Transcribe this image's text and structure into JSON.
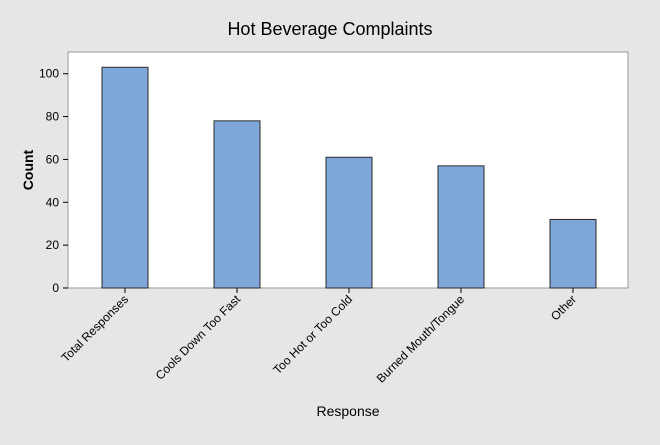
{
  "chart_data": {
    "type": "bar",
    "title": "Hot Beverage Complaints",
    "xlabel": "Response",
    "ylabel": "Count",
    "categories": [
      "Total Responses",
      "Cools Down Too Fast",
      "Too Hot or Too Cold",
      "Burned Mouth/Tongue",
      "Other"
    ],
    "values": [
      103,
      78,
      61,
      57,
      32
    ],
    "ylim": [
      0,
      110
    ],
    "yticks": [
      0,
      20,
      40,
      60,
      80,
      100
    ],
    "grid": false,
    "legend": "none",
    "colors": {
      "bar_fill": "#7ea6d8",
      "bar_stroke": "#2b2b2b",
      "plot_background": "#ffffff",
      "figure_background": "#e6e6e6"
    }
  }
}
